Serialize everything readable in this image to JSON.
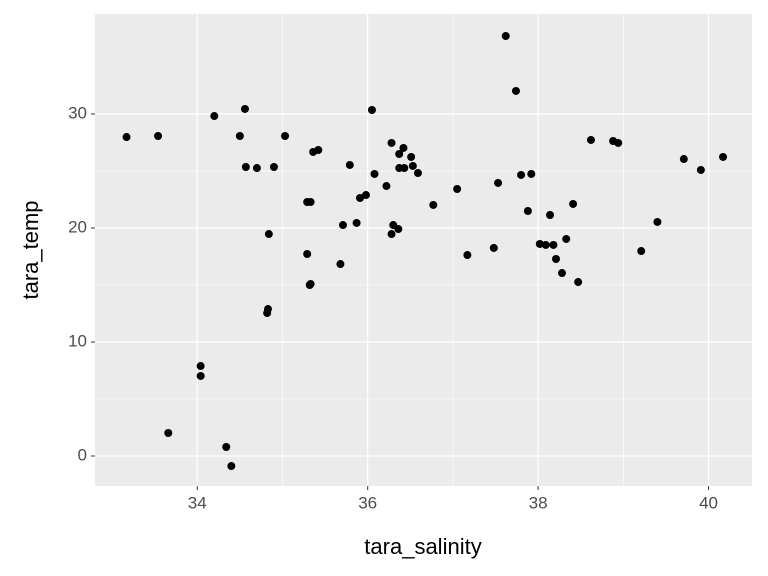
{
  "chart_data": {
    "type": "scatter",
    "x_label": "tara_salinity",
    "y_label": "tara_temp",
    "color": "#000000",
    "grid": true,
    "xlim": [
      32.8,
      40.51
    ],
    "ylim": [
      -2.63,
      38.77
    ],
    "xticks": [
      34,
      36,
      38,
      40
    ],
    "yticks": [
      0,
      10,
      20,
      30
    ],
    "x": [
      33.17,
      33.54,
      33.66,
      34.04,
      34.04,
      34.2,
      34.34,
      34.4,
      34.5,
      34.56,
      34.57,
      34.7,
      34.84,
      34.83,
      34.82,
      34.9,
      35.03,
      35.29,
      35.33,
      35.29,
      35.33,
      35.32,
      35.36,
      35.42,
      35.68,
      35.71,
      35.79,
      35.87,
      35.91,
      35.98,
      36.05,
      36.08,
      36.22,
      36.28,
      36.28,
      36.3,
      36.36,
      36.37,
      36.37,
      36.42,
      36.43,
      36.51,
      36.53,
      36.59,
      36.77,
      37.05,
      37.17,
      37.48,
      37.53,
      37.62,
      37.74,
      37.8,
      37.88,
      37.92,
      38.02,
      38.09,
      38.14,
      38.18,
      38.21,
      38.28,
      38.33,
      38.41,
      38.47,
      38.62,
      38.88,
      38.94,
      39.21,
      39.4,
      39.71,
      39.91,
      40.17
    ],
    "values": [
      27.98,
      28.07,
      2.02,
      7.89,
      7.02,
      29.82,
      0.79,
      -0.88,
      28.07,
      30.44,
      25.35,
      25.26,
      19.47,
      12.89,
      12.54,
      25.35,
      28.07,
      22.28,
      22.28,
      17.72,
      15.09,
      15.0,
      26.67,
      26.84,
      16.84,
      20.26,
      25.53,
      20.44,
      22.63,
      22.89,
      30.35,
      24.74,
      23.68,
      27.46,
      19.47,
      20.26,
      19.91,
      25.26,
      26.49,
      27.02,
      25.26,
      26.23,
      25.44,
      24.82,
      22.02,
      23.42,
      17.63,
      18.25,
      23.95,
      36.84,
      32.02,
      24.65,
      21.49,
      24.74,
      18.6,
      18.51,
      21.14,
      18.51,
      17.28,
      16.05,
      19.04,
      22.11,
      15.26,
      27.72,
      27.63,
      27.46,
      17.98,
      20.53,
      26.05,
      25.09,
      26.23
    ]
  }
}
